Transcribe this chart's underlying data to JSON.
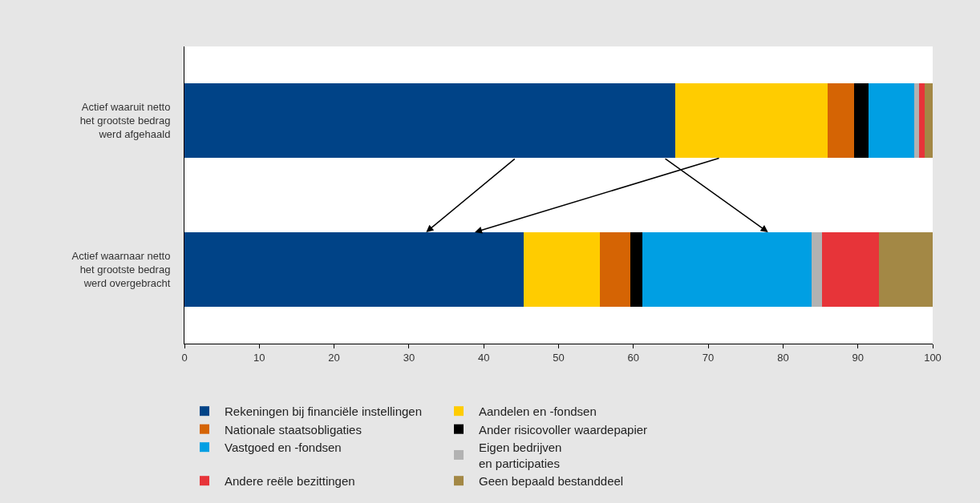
{
  "chart_data": {
    "type": "bar",
    "orientation": "horizontal",
    "stacked": true,
    "categories": [
      "Actief waaruit netto\nhet grootste bedrag\nwerd afgehaald",
      "Actief waarnaar netto\nhet grootste bedrag\nwerd overgebracht"
    ],
    "series": [
      {
        "name": "Rekeningen bij financiële instellingen",
        "color": "#004387",
        "values": [
          65.6,
          45.3
        ]
      },
      {
        "name": "Aandelen en -fondsen",
        "color": "#ffcc00",
        "values": [
          20.4,
          10.2
        ]
      },
      {
        "name": "Nationale staatsobligaties",
        "color": "#d56404",
        "values": [
          3.5,
          4.1
        ]
      },
      {
        "name": "Ander risicovoller waardepapier",
        "color": "#000000",
        "values": [
          1.9,
          1.6
        ]
      },
      {
        "name": "Vastgoed en -fondsen",
        "color": "#009fe3",
        "values": [
          6.1,
          22.6
        ]
      },
      {
        "name": "Eigen bedrijven\nen participaties",
        "color": "#b2b2b2",
        "values": [
          0.7,
          1.4
        ]
      },
      {
        "name": "Andere reële bezittingen",
        "color": "#e73439",
        "values": [
          0.7,
          7.6
        ]
      },
      {
        "name": "Geen bepaald bestanddeel",
        "color": "#a38845",
        "values": [
          1.1,
          7.2
        ]
      }
    ],
    "xlim": [
      0,
      100
    ],
    "xticks": [
      0,
      10,
      20,
      30,
      40,
      50,
      60,
      70,
      80,
      90,
      100
    ],
    "legend": "bottom"
  }
}
